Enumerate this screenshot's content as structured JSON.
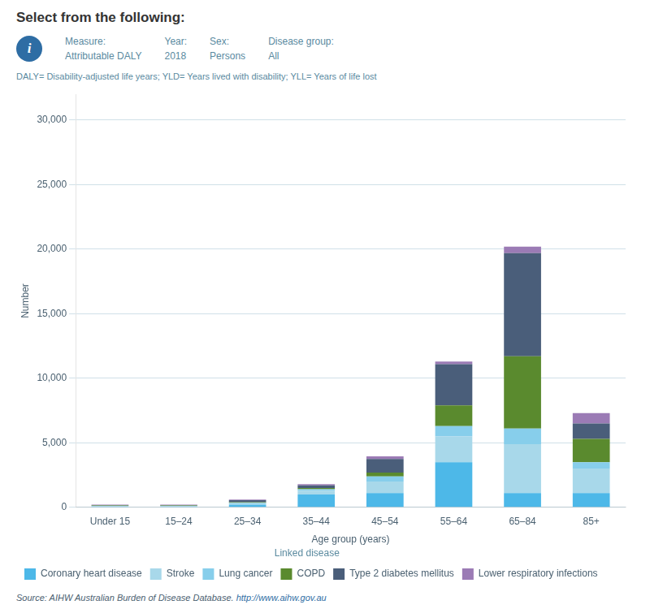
{
  "chart_data": {
    "type": "bar",
    "stacked": true,
    "title": "Select from the following:",
    "annotations": {
      "icon": "i",
      "fields": [
        {
          "label": "Measure:",
          "text": "Attributable DALY"
        },
        {
          "label": "Year:",
          "text": "2018"
        },
        {
          "label": "Sex:",
          "text": "Persons"
        },
        {
          "label": "Disease group:",
          "text": "All"
        }
      ],
      "footnote": "DALY= Disability-adjusted life years; YLD= Years lived with disability; YLL= Years of life lost",
      "source": "Source: AIHW Australian Burden of Disease Database. ",
      "source_link": "http://www.aihw.gov.au"
    },
    "xlabel": "Age group (years)",
    "ylabel": "Number",
    "categories": [
      "Under 15",
      "15–24",
      "25–34",
      "35–44",
      "45–54",
      "55–64",
      "65–84",
      "85+"
    ],
    "series": [
      {
        "name": "Coronary heart disease",
        "color": "#4db8e8",
        "values": [
          50,
          50,
          200,
          1000,
          1100,
          3500,
          1100,
          1100
        ]
      },
      {
        "name": "Stroke",
        "color": "#a8d8ea",
        "values": [
          50,
          50,
          100,
          300,
          900,
          2000,
          3800,
          1900
        ]
      },
      {
        "name": "Lung cancer",
        "color": "#87CEEB",
        "values": [
          20,
          20,
          50,
          100,
          400,
          800,
          1200,
          500
        ]
      },
      {
        "name": "COPD",
        "color": "#5a8a2e",
        "values": [
          20,
          20,
          50,
          100,
          300,
          1600,
          5600,
          1800
        ]
      },
      {
        "name": "Type 2 diabetes mellitus",
        "color": "#4a5e7a",
        "values": [
          30,
          30,
          150,
          200,
          1050,
          3200,
          8000,
          1200
        ]
      },
      {
        "name": "Lower respiratory infections",
        "color": "#9b7bb5",
        "values": [
          30,
          30,
          50,
          100,
          200,
          200,
          500,
          800
        ]
      }
    ],
    "ylim": [
      0,
      32000
    ],
    "yticks": [
      0,
      {
        "value": 5000,
        "label": "5,000"
      },
      {
        "value": 10000,
        "label": "10,000"
      },
      {
        "value": 15000,
        "label": "15,000"
      },
      {
        "value": 20000,
        "label": "20,000"
      },
      {
        "value": 25000,
        "label": "25,000"
      },
      {
        "value": 30000,
        "label": "30,000"
      }
    ],
    "grid": true,
    "legend": "bottom",
    "legend_title": "Linked disease"
  }
}
